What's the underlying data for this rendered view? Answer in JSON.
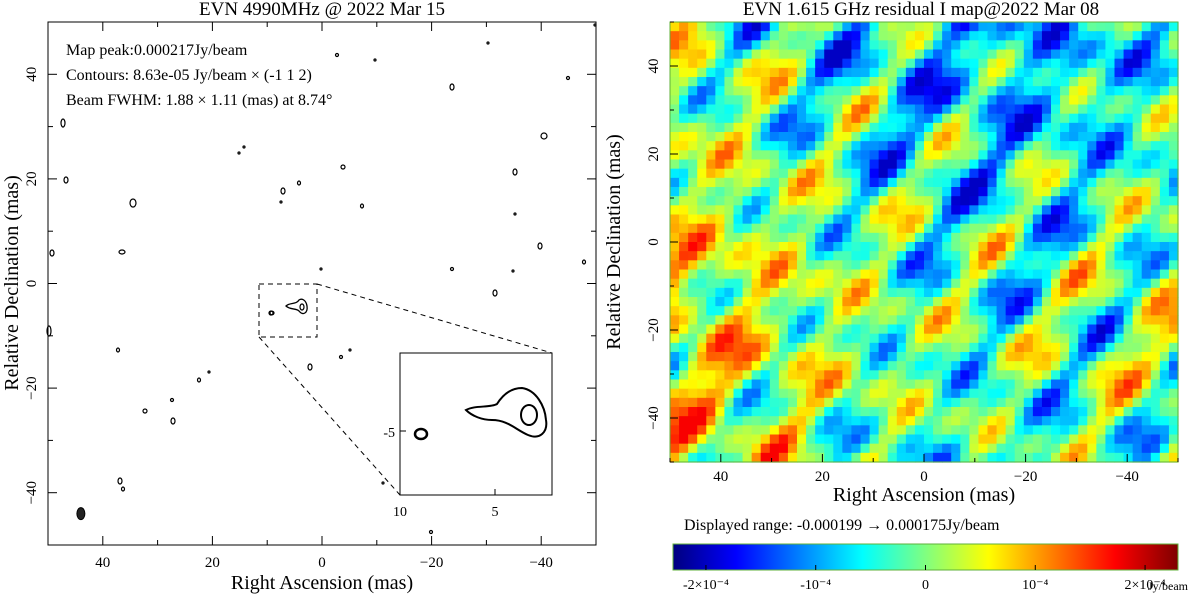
{
  "chart_data": [
    {
      "type": "contour",
      "title": "EVN 4990MHz @ 2022 Mar 15",
      "xlabel": "Right Ascension (mas)",
      "ylabel": "Relative Declination (mas)",
      "xlim": [
        50,
        -50
      ],
      "ylim": [
        -50,
        50
      ],
      "xticks": [
        40,
        20,
        0,
        -20,
        -40
      ],
      "yticks": [
        40,
        20,
        0,
        -20,
        -40
      ],
      "annotations": [
        "Map peak:0.000217Jy/beam",
        "Contours: 8.63e-05 Jy/beam × (-1 1 2)",
        "Beam FWHM: 1.88 × 1.11 (mas) at 8.74°"
      ],
      "zoom_box": {
        "x": [
          10,
          0
        ],
        "y": [
          -9.5,
          0.5
        ]
      },
      "inset": {
        "xticks": [
          10,
          5
        ],
        "yticks": [
          -5
        ],
        "xlim": [
          10,
          0
        ],
        "ylim": [
          -9,
          1
        ]
      },
      "features": [
        {
          "x": 44.0,
          "y": -44.0,
          "filled": true
        },
        {
          "x": 6.0,
          "y": -4.5
        },
        {
          "x": 4.5,
          "y": -5.5
        }
      ]
    },
    {
      "type": "heatmap",
      "title": "EVN 1.615 GHz residual I map@2022 Mar 08",
      "xlabel": "Right Ascension (mas)",
      "ylabel": "Relative Declination (mas)",
      "xlim": [
        50,
        -50
      ],
      "ylim": [
        -50,
        50
      ],
      "xticks": [
        40,
        20,
        0,
        -20,
        -40
      ],
      "yticks": [
        40,
        20,
        0,
        -20,
        -40
      ],
      "range_text": "Displayed range: -0.000199 → 0.000175Jy/beam",
      "value_range": [
        -0.000199,
        0.000175
      ],
      "colorbar": {
        "ticks": [
          -0.0002,
          -0.0001,
          0,
          0.0001,
          0.0002
        ],
        "tick_labels": [
          "-2×10⁻⁴",
          "-10⁻⁴",
          "0",
          "10⁻⁴",
          "2×10⁻⁴"
        ],
        "unit": "Jy/beam"
      }
    }
  ]
}
